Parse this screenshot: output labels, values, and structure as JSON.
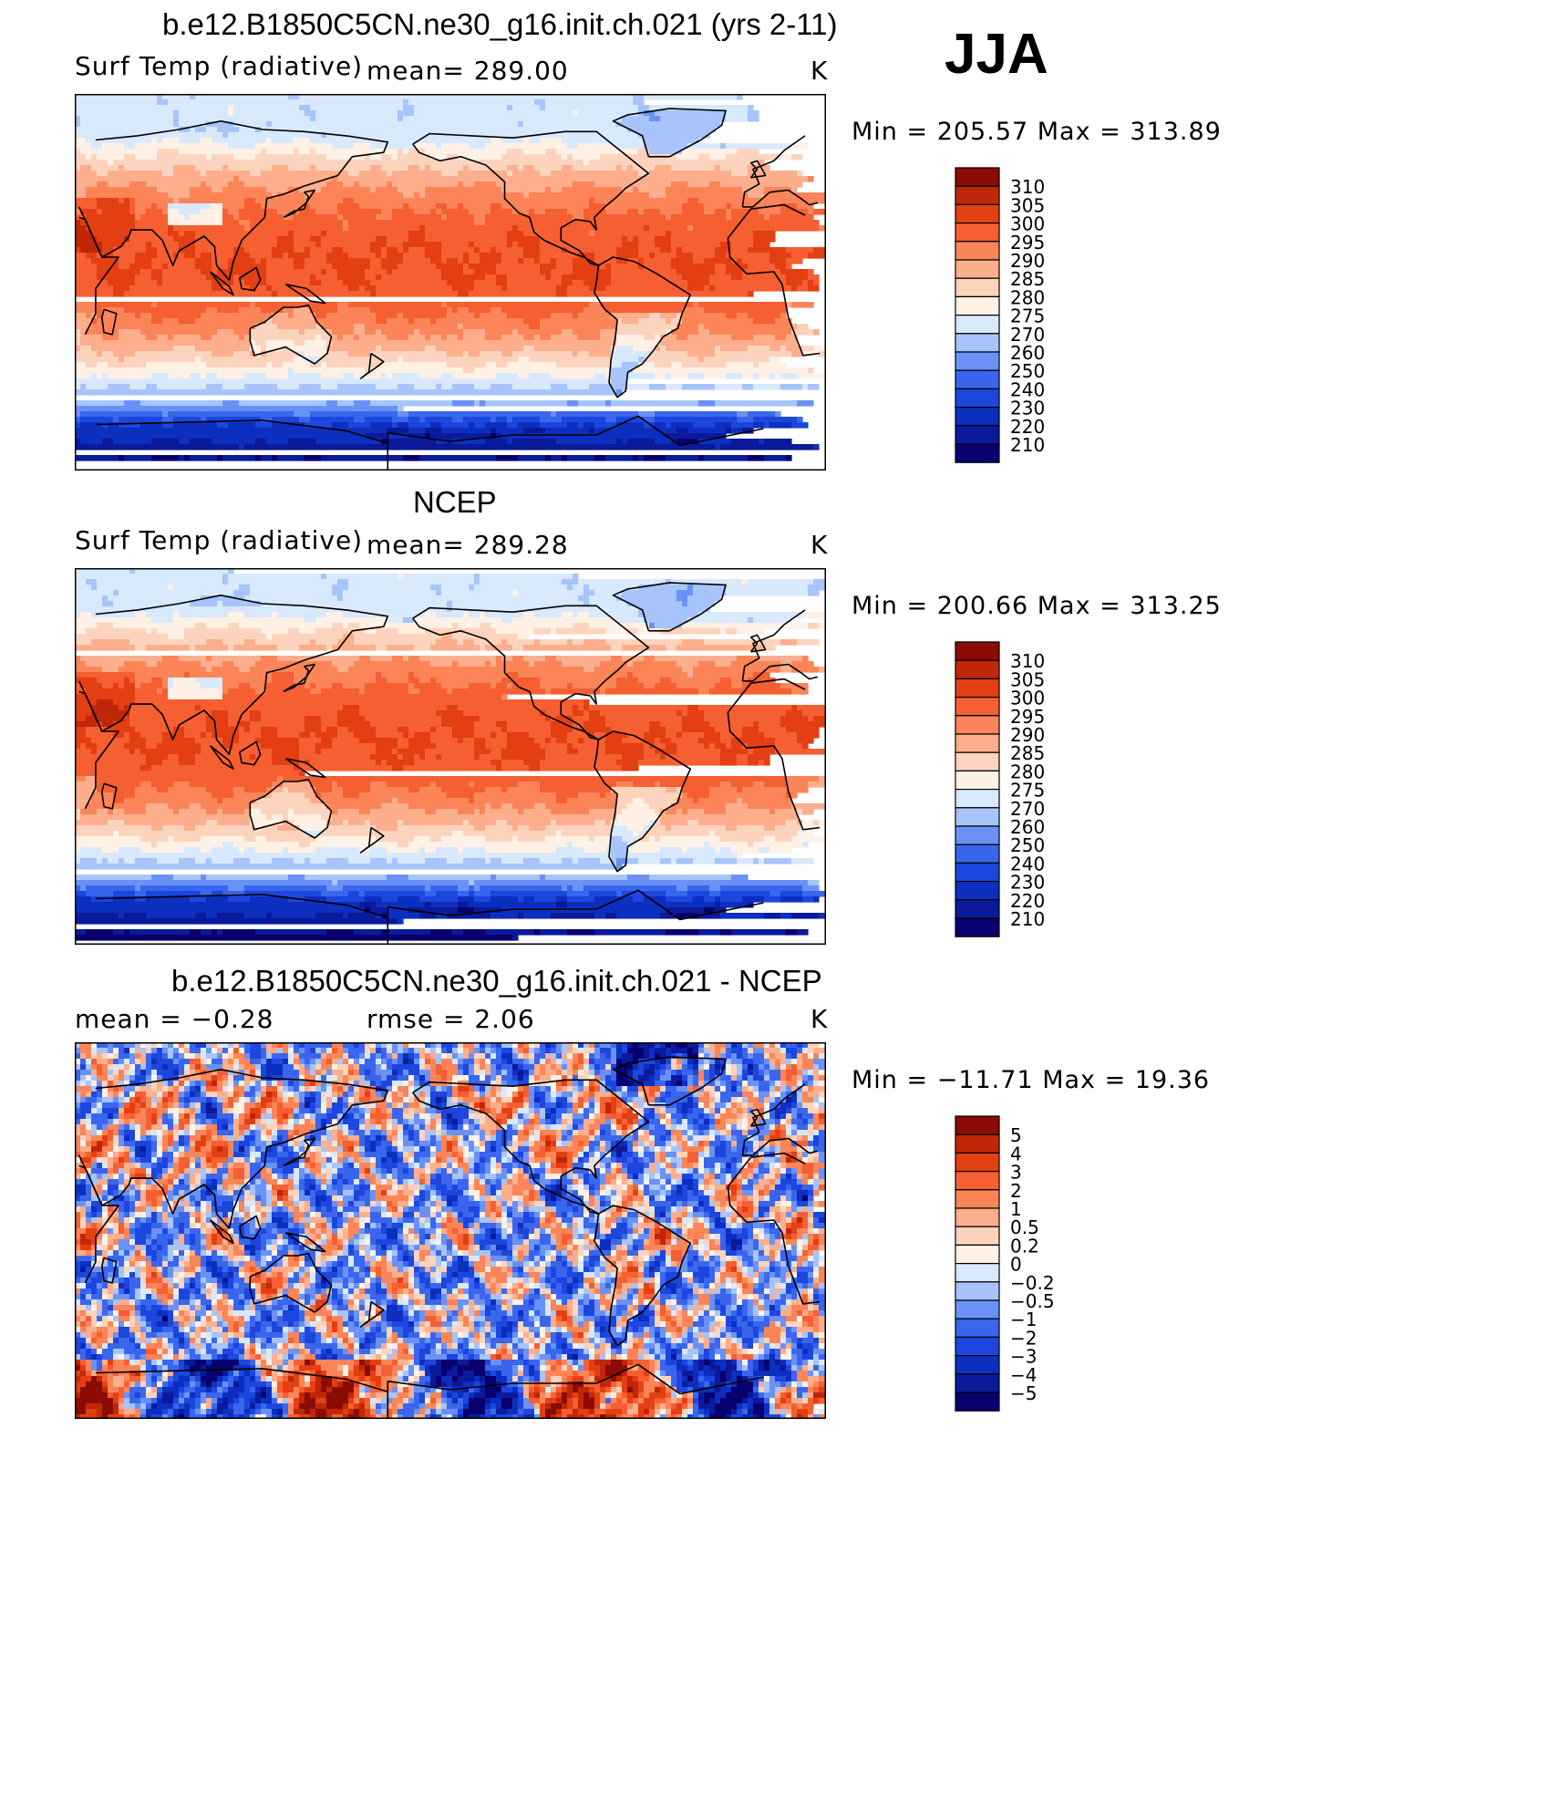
{
  "season": "JJA",
  "colors": {
    "temp_scale": [
      "#08006e",
      "#0a1a9a",
      "#0c2fc0",
      "#1c46de",
      "#3a66ee",
      "#6a92f6",
      "#a7c4fb",
      "#d9e9fc",
      "#fff1e6",
      "#fcd4bd",
      "#fcae8d",
      "#fb8558",
      "#f55f31",
      "#e33f12",
      "#c02708",
      "#8a0c05"
    ],
    "diff_scale": [
      "#08006e",
      "#0a1a9a",
      "#0c2fc0",
      "#1c46de",
      "#3a66ee",
      "#6a92f6",
      "#a7c4fb",
      "#d9e9fc",
      "#fff1e6",
      "#fcd4bd",
      "#fcae8d",
      "#fb8558",
      "#f55f31",
      "#e33f12",
      "#c02708",
      "#8a0c05"
    ],
    "coast": "#000000"
  },
  "panels": [
    {
      "title": "b.e12.B1850C5CN.ne30_g16.init.ch.021 (yrs 2-11)",
      "left_label": "Surf Temp (radiative)",
      "center_label": "mean=  289.00",
      "units": "K",
      "minmax": "Min  =  205.57  Max  =  313.89",
      "colorbar": [
        "310",
        "305",
        "300",
        "295",
        "290",
        "285",
        "280",
        "275",
        "270",
        "260",
        "250",
        "240",
        "230",
        "220",
        "210"
      ]
    },
    {
      "title": "NCEP",
      "left_label": "Surf Temp (radiative)",
      "center_label": "mean=  289.28",
      "units": "K",
      "minmax": "Min  =  200.66  Max  =  313.25",
      "colorbar": [
        "310",
        "305",
        "300",
        "295",
        "290",
        "285",
        "280",
        "275",
        "270",
        "260",
        "250",
        "240",
        "230",
        "220",
        "210"
      ]
    },
    {
      "title": "b.e12.B1850C5CN.ne30_g16.init.ch.021 - NCEP",
      "left_label": "mean  =    −0.28",
      "center_label": "rmse  =     2.06",
      "units": "K",
      "minmax": "Min  =  −11.71  Max  =    19.36",
      "colorbar": [
        "5",
        "4",
        "3",
        "2",
        "1",
        "0.5",
        "0.2",
        "0",
        "−0.2",
        "−0.5",
        "−1",
        "−2",
        "−3",
        "−4",
        "−5"
      ]
    }
  ]
}
